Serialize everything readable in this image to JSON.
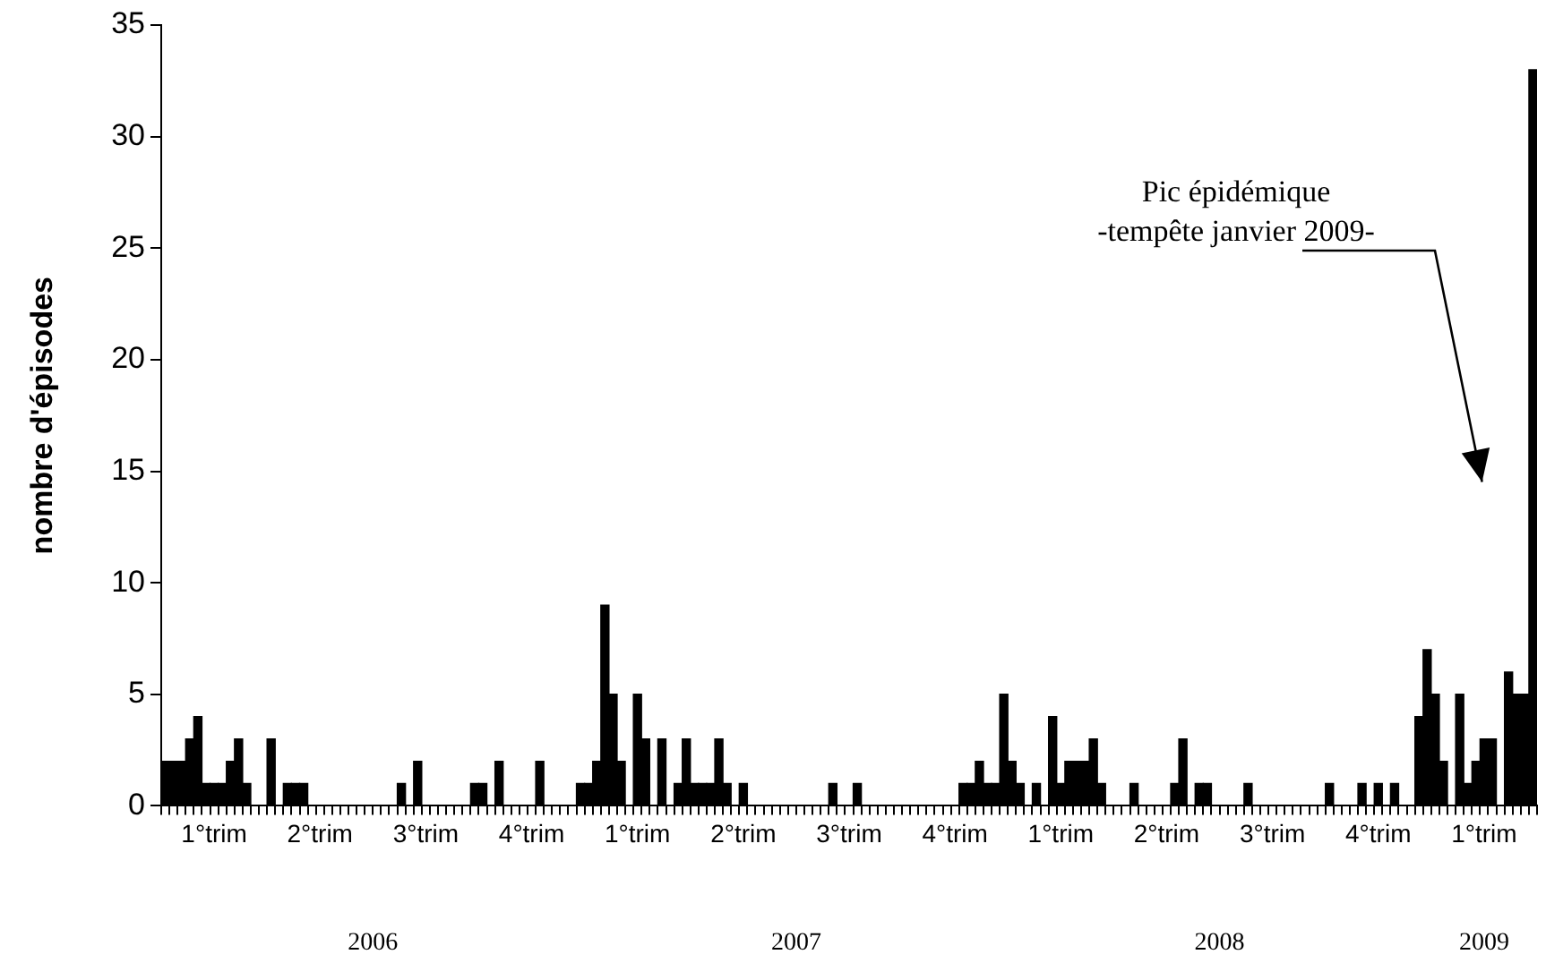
{
  "chart_data": {
    "type": "bar",
    "ylabel": "nombre d'épisodes",
    "categories": [
      null,
      null,
      null,
      null,
      null,
      null,
      "1°trim",
      null,
      null,
      null,
      null,
      null,
      null,
      null,
      null,
      null,
      null,
      null,
      null,
      "2°trim",
      null,
      null,
      null,
      null,
      null,
      null,
      null,
      null,
      null,
      null,
      null,
      null,
      "3°trim",
      null,
      null,
      null,
      null,
      null,
      null,
      null,
      null,
      null,
      null,
      null,
      null,
      "4°trim",
      null,
      null,
      null,
      null,
      null,
      null,
      null,
      null,
      null,
      null,
      null,
      null,
      "1°trim",
      null,
      null,
      null,
      null,
      null,
      null,
      null,
      null,
      null,
      null,
      null,
      null,
      "2°trim",
      null,
      null,
      null,
      null,
      null,
      null,
      null,
      null,
      null,
      null,
      null,
      null,
      "3°trim",
      null,
      null,
      null,
      null,
      null,
      null,
      null,
      null,
      null,
      null,
      null,
      null,
      "4°trim",
      null,
      null,
      null,
      null,
      null,
      null,
      null,
      null,
      null,
      null,
      null,
      null,
      "1°trim",
      null,
      null,
      null,
      null,
      null,
      null,
      null,
      null,
      null,
      null,
      null,
      null,
      "2°trim",
      null,
      null,
      null,
      null,
      null,
      null,
      null,
      null,
      null,
      null,
      null,
      null,
      "3°trim",
      null,
      null,
      null,
      null,
      null,
      null,
      null,
      null,
      null,
      null,
      null,
      null,
      "4°trim",
      null,
      null,
      null,
      null,
      null,
      null,
      null,
      null,
      null,
      null,
      null,
      null,
      "1°trim",
      null,
      null,
      null,
      null,
      null,
      null
    ],
    "values": [
      2,
      2,
      2,
      3,
      4,
      1,
      1,
      1,
      2,
      3,
      1,
      0,
      0,
      3,
      0,
      1,
      1,
      1,
      0,
      0,
      0,
      0,
      0,
      0,
      0,
      0,
      0,
      0,
      0,
      1,
      0,
      2,
      0,
      0,
      0,
      0,
      0,
      0,
      1,
      1,
      0,
      2,
      0,
      0,
      0,
      0,
      2,
      0,
      0,
      0,
      0,
      1,
      1,
      2,
      9,
      5,
      2,
      0,
      5,
      3,
      0,
      3,
      0,
      1,
      3,
      1,
      1,
      1,
      3,
      1,
      0,
      1,
      0,
      0,
      0,
      0,
      0,
      0,
      0,
      0,
      0,
      0,
      1,
      0,
      0,
      1,
      0,
      0,
      0,
      0,
      0,
      0,
      0,
      0,
      0,
      0,
      0,
      0,
      1,
      1,
      2,
      1,
      1,
      5,
      2,
      1,
      0,
      1,
      0,
      4,
      1,
      2,
      2,
      2,
      3,
      1,
      0,
      0,
      0,
      1,
      0,
      0,
      0,
      0,
      1,
      3,
      0,
      1,
      1,
      0,
      0,
      0,
      0,
      1,
      0,
      0,
      0,
      0,
      0,
      0,
      0,
      0,
      0,
      1,
      0,
      0,
      0,
      1,
      0,
      1,
      0,
      1,
      0,
      0,
      4,
      7,
      5,
      2,
      0,
      5,
      1,
      2,
      3,
      3,
      0,
      6,
      5,
      5,
      33
    ],
    "color": "#000000",
    "ylim": [
      0,
      35
    ],
    "yticks": [
      0,
      5,
      10,
      15,
      20,
      25,
      30,
      35
    ],
    "grid": false,
    "legend": false,
    "annotations": [
      "Pic épidémique\n-tempête janvier 2009-",
      "2006",
      "2007",
      "2008",
      "2009"
    ]
  }
}
